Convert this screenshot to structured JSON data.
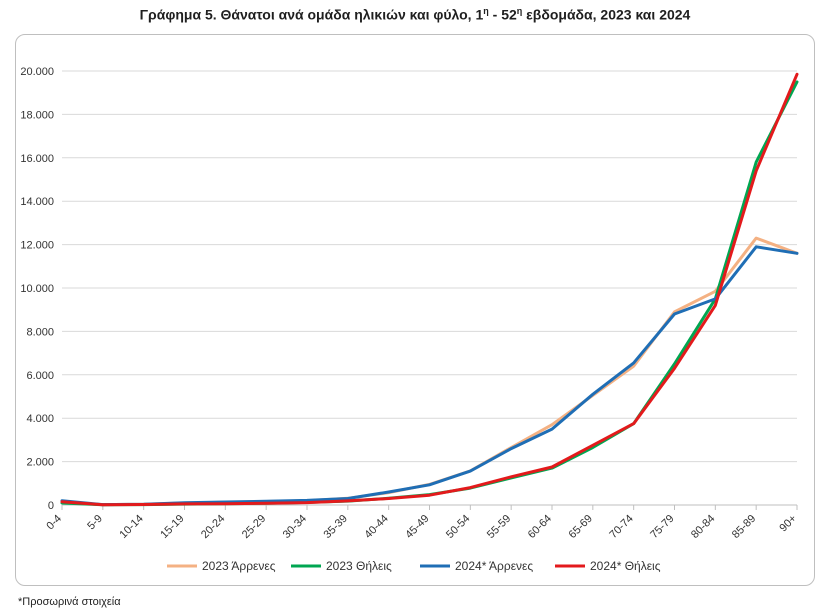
{
  "title_pre": "Γράφημα 5. Θάνατοι ανά ομάδα ηλικιών και φύλο, 1",
  "title_sup1": "η",
  "title_mid": " - 52",
  "title_sup2": "η",
  "title_post": " εβδομάδα, 2023 και 2024",
  "footnote": "*Προσωρινά στοιχεία",
  "chart_data": {
    "type": "line",
    "categories": [
      "0-4",
      "5-9",
      "10-14",
      "15-19",
      "20-24",
      "25-29",
      "30-34",
      "35-39",
      "40-44",
      "45-49",
      "50-54",
      "55-59",
      "60-64",
      "65-69",
      "70-74",
      "75-79",
      "80-84",
      "85-89",
      "90+"
    ],
    "y_tick_labels": [
      "0",
      "2.000",
      "4.000",
      "6.000",
      "8.000",
      "10.000",
      "12.000",
      "14.000",
      "16.000",
      "18.000",
      "20.000"
    ],
    "ylim": [
      0,
      20000
    ],
    "grid": true,
    "legend_position": "bottom",
    "series": [
      {
        "name": "2023 Άρρενες",
        "color": "#f4b183",
        "values": [
          120,
          20,
          30,
          90,
          130,
          160,
          200,
          310,
          570,
          950,
          1570,
          2650,
          3700,
          5050,
          6400,
          8900,
          9850,
          12300,
          11600
        ]
      },
      {
        "name": "2023 Θήλεις",
        "color": "#00a651",
        "values": [
          90,
          15,
          20,
          40,
          60,
          80,
          120,
          180,
          310,
          480,
          780,
          1250,
          1700,
          2650,
          3750,
          6500,
          9500,
          15800,
          19500
        ]
      },
      {
        "name": "2024* Άρρενες",
        "color": "#1f6eb5",
        "values": [
          200,
          20,
          30,
          100,
          140,
          170,
          210,
          300,
          600,
          930,
          1560,
          2600,
          3500,
          5100,
          6550,
          8800,
          9500,
          11900,
          11600
        ]
      },
      {
        "name": "2024* Θήλεις",
        "color": "#e31a1c",
        "values": [
          150,
          10,
          25,
          50,
          60,
          80,
          110,
          190,
          300,
          450,
          800,
          1300,
          1750,
          2750,
          3750,
          6300,
          9200,
          15400,
          19850
        ]
      }
    ]
  }
}
